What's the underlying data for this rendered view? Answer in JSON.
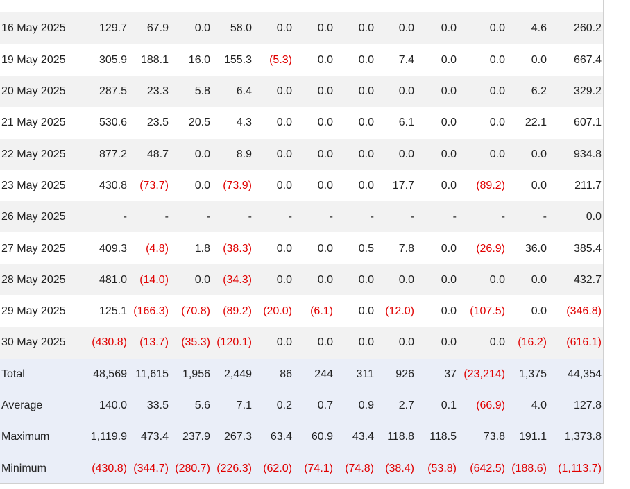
{
  "table": {
    "rows": [
      [
        "16 May 2025",
        "129.7",
        "67.9",
        "0.0",
        "58.0",
        "0.0",
        "0.0",
        "0.0",
        "0.0",
        "0.0",
        "0.0",
        "4.6",
        "260.2"
      ],
      [
        "19 May 2025",
        "305.9",
        "188.1",
        "16.0",
        "155.3",
        "(5.3)",
        "0.0",
        "0.0",
        "7.4",
        "0.0",
        "0.0",
        "0.0",
        "667.4"
      ],
      [
        "20 May 2025",
        "287.5",
        "23.3",
        "5.8",
        "6.4",
        "0.0",
        "0.0",
        "0.0",
        "0.0",
        "0.0",
        "0.0",
        "6.2",
        "329.2"
      ],
      [
        "21 May 2025",
        "530.6",
        "23.5",
        "20.5",
        "4.3",
        "0.0",
        "0.0",
        "0.0",
        "6.1",
        "0.0",
        "0.0",
        "22.1",
        "607.1"
      ],
      [
        "22 May 2025",
        "877.2",
        "48.7",
        "0.0",
        "8.9",
        "0.0",
        "0.0",
        "0.0",
        "0.0",
        "0.0",
        "0.0",
        "0.0",
        "934.8"
      ],
      [
        "23 May 2025",
        "430.8",
        "(73.7)",
        "0.0",
        "(73.9)",
        "0.0",
        "0.0",
        "0.0",
        "17.7",
        "0.0",
        "(89.2)",
        "0.0",
        "211.7"
      ],
      [
        "26 May 2025",
        "-",
        "-",
        "-",
        "-",
        "-",
        "-",
        "-",
        "-",
        "-",
        "-",
        "-",
        "0.0"
      ],
      [
        "27 May 2025",
        "409.3",
        "(4.8)",
        "1.8",
        "(38.3)",
        "0.0",
        "0.0",
        "0.5",
        "7.8",
        "0.0",
        "(26.9)",
        "36.0",
        "385.4"
      ],
      [
        "28 May 2025",
        "481.0",
        "(14.0)",
        "0.0",
        "(34.3)",
        "0.0",
        "0.0",
        "0.0",
        "0.0",
        "0.0",
        "0.0",
        "0.0",
        "432.7"
      ],
      [
        "29 May 2025",
        "125.1",
        "(166.3)",
        "(70.8)",
        "(89.2)",
        "(20.0)",
        "(6.1)",
        "0.0",
        "(12.0)",
        "0.0",
        "(107.5)",
        "0.0",
        "(346.8)"
      ],
      [
        "30 May 2025",
        "(430.8)",
        "(13.7)",
        "(35.3)",
        "(120.1)",
        "0.0",
        "0.0",
        "0.0",
        "0.0",
        "0.0",
        "0.0",
        "(16.2)",
        "(616.1)"
      ]
    ],
    "summary": [
      [
        "Total",
        "48,569",
        "11,615",
        "1,956",
        "2,449",
        "86",
        "244",
        "311",
        "926",
        "37",
        "(23,214)",
        "1,375",
        "44,354"
      ],
      [
        "Average",
        "140.0",
        "33.5",
        "5.6",
        "7.1",
        "0.2",
        "0.7",
        "0.9",
        "2.7",
        "0.1",
        "(66.9)",
        "4.0",
        "127.8"
      ],
      [
        "Maximum",
        "1,119.9",
        "473.4",
        "237.9",
        "267.3",
        "63.4",
        "60.9",
        "43.4",
        "118.8",
        "118.5",
        "73.8",
        "191.1",
        "1,373.8"
      ],
      [
        "Minimum",
        "(430.8)",
        "(344.7)",
        "(280.7)",
        "(226.3)",
        "(62.0)",
        "(74.1)",
        "(74.8)",
        "(38.4)",
        "(53.8)",
        "(642.5)",
        "(188.6)",
        "(1,113.7)"
      ]
    ]
  }
}
